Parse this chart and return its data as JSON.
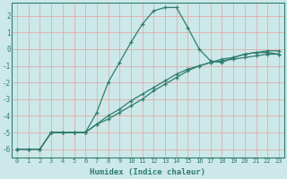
{
  "xlabel": "Humidex (Indice chaleur)",
  "ylabel": "",
  "background_color": "#cce8e8",
  "grid_color": "#e8a0a0",
  "line_color": "#2e7d6e",
  "xlim": [
    -0.5,
    23.5
  ],
  "ylim": [
    -6.5,
    2.8
  ],
  "xticks": [
    0,
    1,
    2,
    3,
    4,
    5,
    6,
    7,
    8,
    9,
    10,
    11,
    12,
    13,
    14,
    15,
    16,
    17,
    18,
    19,
    20,
    21,
    22,
    23
  ],
  "yticks": [
    -6,
    -5,
    -4,
    -3,
    -2,
    -1,
    0,
    1,
    2
  ],
  "series1_x": [
    0,
    1,
    2,
    3,
    4,
    5,
    6,
    7,
    8,
    9,
    10,
    11,
    12,
    13,
    14,
    15,
    16,
    17,
    18,
    19,
    20,
    21,
    22,
    23
  ],
  "series1_y": [
    -6.0,
    -6.0,
    -6.0,
    -5.0,
    -5.0,
    -5.0,
    -5.0,
    -3.8,
    -2.0,
    -0.8,
    0.4,
    1.5,
    2.3,
    2.5,
    2.5,
    1.3,
    0.0,
    -0.7,
    -0.8,
    -0.5,
    -0.3,
    -0.2,
    -0.2,
    -0.3
  ],
  "series2_x": [
    0,
    1,
    2,
    3,
    4,
    5,
    6,
    7,
    8,
    9,
    10,
    11,
    12,
    13,
    14,
    15,
    16,
    17,
    18,
    19,
    20,
    21,
    22,
    23
  ],
  "series2_y": [
    -6.0,
    -6.0,
    -6.0,
    -5.0,
    -5.0,
    -5.0,
    -5.0,
    -4.5,
    -4.2,
    -3.8,
    -3.4,
    -3.0,
    -2.5,
    -2.1,
    -1.7,
    -1.3,
    -1.0,
    -0.8,
    -0.7,
    -0.6,
    -0.5,
    -0.4,
    -0.3,
    -0.3
  ],
  "series3_x": [
    0,
    1,
    2,
    3,
    4,
    5,
    6,
    7,
    8,
    9,
    10,
    11,
    12,
    13,
    14,
    15,
    16,
    17,
    18,
    19,
    20,
    21,
    22,
    23
  ],
  "series3_y": [
    -6.0,
    -6.0,
    -6.0,
    -5.0,
    -5.0,
    -5.0,
    -5.0,
    -4.5,
    -4.0,
    -3.6,
    -3.1,
    -2.7,
    -2.3,
    -1.9,
    -1.5,
    -1.2,
    -1.0,
    -0.8,
    -0.6,
    -0.5,
    -0.3,
    -0.2,
    -0.1,
    -0.1
  ],
  "marker": "+",
  "markersize": 3.5,
  "linewidth": 0.9
}
